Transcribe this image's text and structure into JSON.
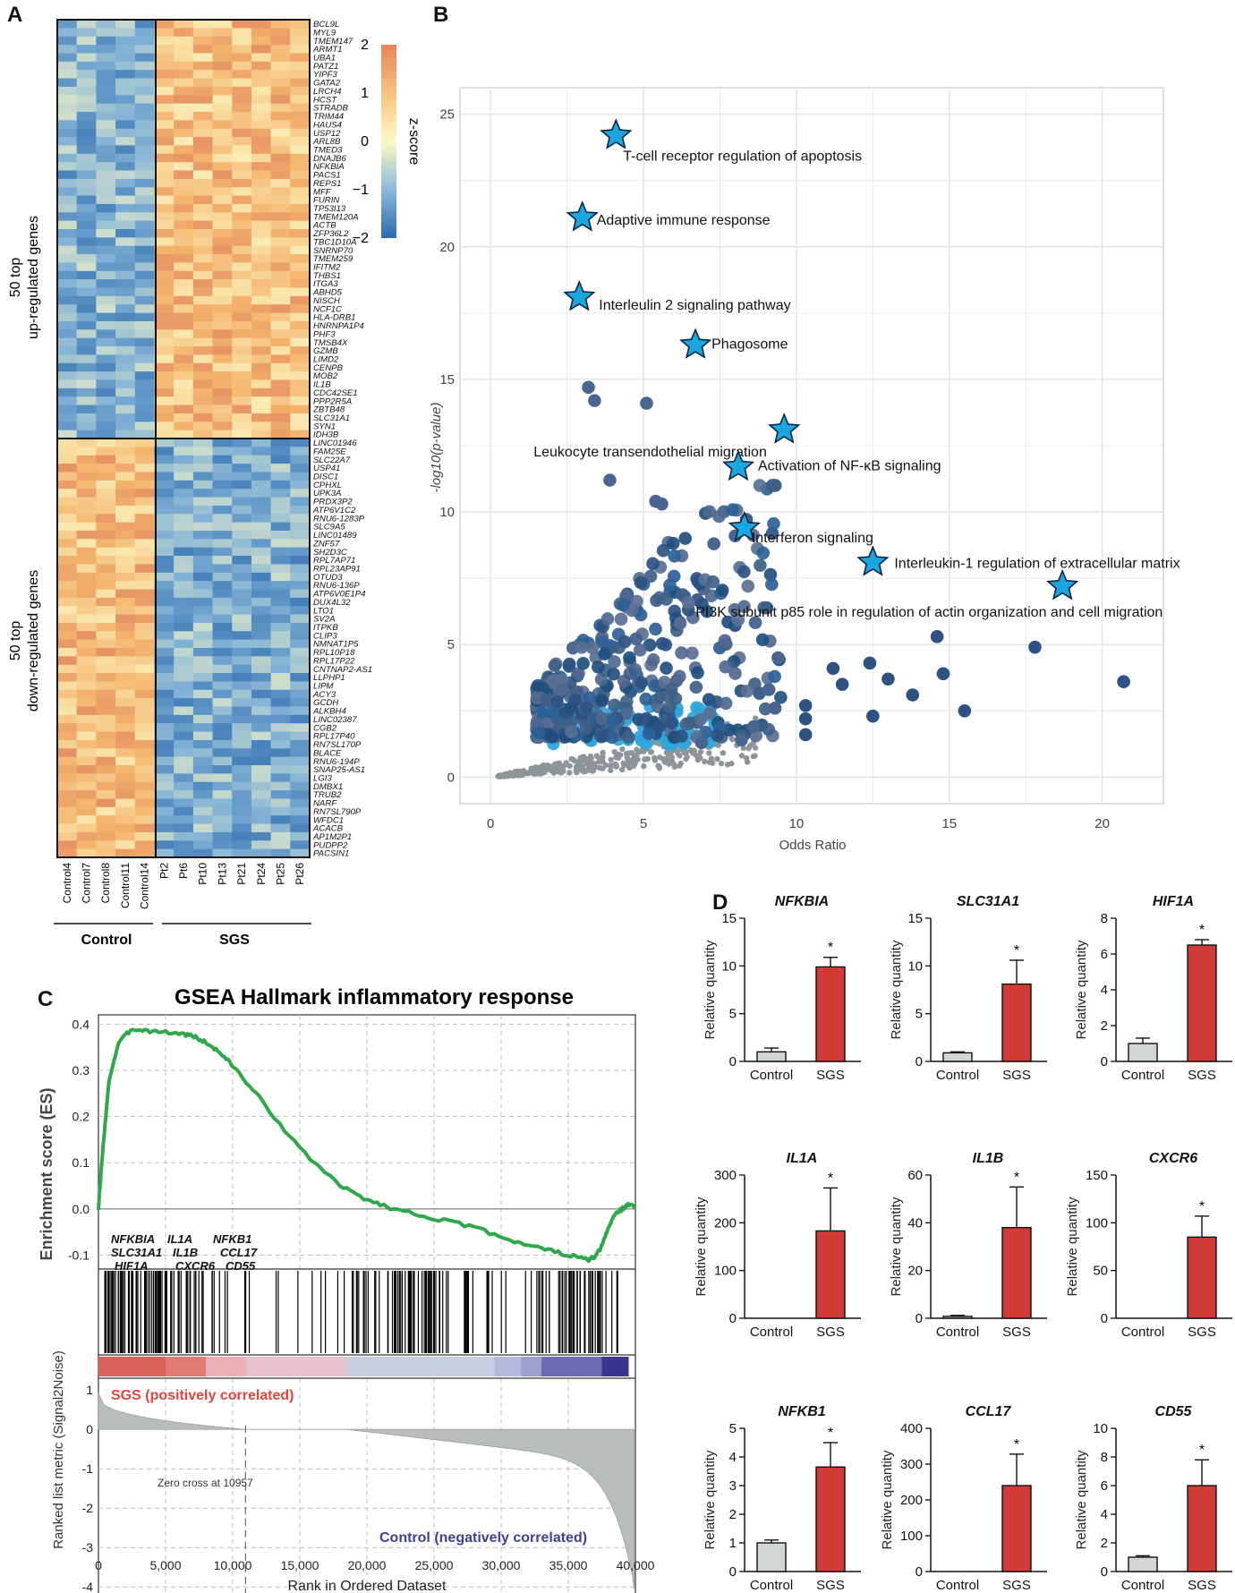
{
  "panels": {
    "a": "A",
    "b": "B",
    "c": "C",
    "d": "D"
  },
  "chart_data": [
    {
      "panel": "A",
      "type": "heatmap",
      "column_groups": [
        "Control",
        "SGS"
      ],
      "columns_control": [
        "Control4",
        "Control7",
        "Control8",
        "Control11",
        "Control14"
      ],
      "columns_sgs": [
        "Pt2",
        "Pt6",
        "Pt10",
        "Pt13",
        "Pt21",
        "Pt24",
        "Pt25",
        "Pt26"
      ],
      "row_groups": [
        "50 top\nup-regulated genes",
        "50 top\ndown-regulated genes"
      ],
      "row_group_lines": [
        [
          "50 top",
          "up-regulated genes"
        ],
        [
          "50 top",
          "down-regulated genes"
        ]
      ],
      "up_genes": [
        "BCL9L",
        "MYL9",
        "TMEM147",
        "ARMT1",
        "UBA1",
        "PATZ1",
        "YIPF3",
        "GATA2",
        "LRCH4",
        "HCST",
        "STRADB",
        "TRIM44",
        "HAUS4",
        "USP12",
        "ARL8B",
        "TMED3",
        "DNAJB6",
        "NFKBIA",
        "PACS1",
        "REPS1",
        "MFF",
        "FURIN",
        "TP53I13",
        "TMEM120A",
        "ACTB",
        "ZFP36L2",
        "TBC1D10A",
        "SNRNP70",
        "TMEM259",
        "IFITM2",
        "THBS1",
        "ITGA3",
        "ABHD5",
        "NISCH",
        "NCF1C",
        "HLA-DRB1",
        "HNRNPA1P4",
        "PHF3",
        "TMSB4X",
        "GZMB",
        "LIMD2",
        "CENPB",
        "MOB2",
        "IL1B",
        "CDC42SE1",
        "PPP2R5A",
        "ZBTB48",
        "SLC31A1",
        "SYN1",
        "IDH3B"
      ],
      "down_genes": [
        "LINC01946",
        "FAM25E",
        "SLC22A7",
        "USP41",
        "DISC1",
        "CPHXL",
        "UPK3A",
        "PRDX3P2",
        "ATP6V1C2",
        "RNU6-1283P",
        "SLC9A5",
        "LINC01489",
        "ZNF57",
        "SH2D3C",
        "RPL7AP71",
        "RPL23AP91",
        "OTUD3",
        "RNU6-136P",
        "ATP6V0E1P4",
        "DUX4L32",
        "LTO1",
        "SV2A",
        "ITPKB",
        "CLIP3",
        "NMNAT1P5",
        "RPL10P18",
        "RPL17P22",
        "CNTNAP2-AS1",
        "LLPHP1",
        "LIPM",
        "ACY3",
        "GCDH",
        "ALKBH4",
        "LINC02387",
        "CGB2",
        "RPL17P40",
        "RN7SL170P",
        "BLACE",
        "RNU6-194P",
        "SNAP25-AS1",
        "LGI3",
        "DMBX1",
        "TRUB2",
        "NARF",
        "RN7SL790P",
        "WFDC1",
        "ACACB",
        "AP1M2P1",
        "PUDPP2",
        "PACSIN1"
      ],
      "colorbar": {
        "title": "z-score",
        "ticks": [
          2,
          1,
          0,
          -1,
          -2
        ],
        "colors": [
          "#2a6aad",
          "#82b2d6",
          "#fcf9c6",
          "#f4b46c",
          "#d9745a"
        ]
      }
    },
    {
      "panel": "B",
      "type": "scatter",
      "xlabel": "Odds Ratio",
      "ylabel": "-log10(p-value)",
      "xlim": [
        -1,
        22
      ],
      "ylim": [
        -1,
        26
      ],
      "xticks": [
        0,
        5,
        10,
        15,
        20
      ],
      "yticks": [
        0,
        5,
        10,
        15,
        20,
        25
      ],
      "highlighted": [
        {
          "label": "T-cell receptor regulation of apoptosis",
          "x": 4.1,
          "y": 24.2
        },
        {
          "label": "Adaptive immune response",
          "x": 3.0,
          "y": 21.1
        },
        {
          "label": "Interleulin 2 signaling pathway",
          "x": 2.9,
          "y": 18.1
        },
        {
          "label": "Phagosome",
          "x": 6.7,
          "y": 16.3
        },
        {
          "label": "Leukocyte transendothelial migration",
          "x": 9.6,
          "y": 13.1
        },
        {
          "label": "Activation of NF-κB signaling",
          "x": 8.1,
          "y": 11.7
        },
        {
          "label": "Interferon signaling",
          "x": 8.3,
          "y": 9.4
        },
        {
          "label": "Interleukin-1 regulation of extracellular matrix",
          "x": 12.5,
          "y": 8.1
        },
        {
          "label": "PI3K subunit p85 role in regulation of actin organization and cell migration",
          "x": 18.7,
          "y": 7.2
        }
      ]
    },
    {
      "panel": "C",
      "type": "line",
      "title": "GSEA Hallmark inflammatory response",
      "ylabel": "Enrichment score (ES)",
      "ylabel2": "Ranked list metric (Signal2Noise)",
      "xlabel": "Rank in Ordered Dataset",
      "xlim": [
        0,
        40000
      ],
      "ylim": [
        -0.13,
        0.42
      ],
      "ylim2": [
        -4.2,
        1.3
      ],
      "xticks": [
        "0",
        "5,000",
        "10,000",
        "15,000",
        "20,000",
        "25,000",
        "30,000",
        "35,000",
        "40,000"
      ],
      "yticks": [
        "0.4",
        "0.3",
        "0.2",
        "0.1",
        "0.0",
        "-0.1"
      ],
      "yticks2": [
        "1",
        "0",
        "-1",
        "-2",
        "-3",
        "-4"
      ],
      "es_x": [
        0,
        300,
        800,
        1500,
        2500,
        4000,
        6000,
        7000,
        8000,
        9000,
        10000,
        12000,
        15000,
        18000,
        20000,
        22000,
        25000,
        28000,
        31000,
        33000,
        35000,
        36500,
        37000,
        37500,
        38000,
        38500,
        39000,
        39500,
        40000
      ],
      "es_y": [
        0.0,
        0.12,
        0.28,
        0.36,
        0.39,
        0.385,
        0.38,
        0.375,
        0.36,
        0.34,
        0.31,
        0.24,
        0.13,
        0.05,
        0.02,
        0.0,
        -0.02,
        -0.04,
        -0.07,
        -0.085,
        -0.1,
        -0.11,
        -0.105,
        -0.08,
        -0.04,
        -0.01,
        0.0,
        0.01,
        0.005
      ],
      "labeled_genes": [
        [
          "NFKBIA",
          "IL1A",
          "NFKB1"
        ],
        [
          "SLC31A1",
          "IL1B",
          "CCL17"
        ],
        [
          "HIF1A",
          "CXCR6",
          "CD55"
        ]
      ],
      "sgs_label": "SGS (positively correlated)",
      "control_label": "Control (negatively correlated)",
      "zero_cross_label": "Zero cross at 10957",
      "zero_cross": 10957
    },
    {
      "panel": "D",
      "type": "bar",
      "ylabel": "Relative quantity",
      "categories": [
        "Control",
        "SGS"
      ],
      "significance": "*",
      "genes": [
        {
          "name": "NFKBIA",
          "values": [
            1.0,
            9.9
          ],
          "errors": [
            0.4,
            1.0
          ],
          "ylim": [
            0,
            15
          ],
          "yticks": [
            0,
            5,
            10,
            15
          ]
        },
        {
          "name": "SLC31A1",
          "values": [
            0.9,
            8.1
          ],
          "errors": [
            0.1,
            2.5
          ],
          "ylim": [
            0,
            15
          ],
          "yticks": [
            0,
            5,
            10,
            15
          ]
        },
        {
          "name": "HIF1A",
          "values": [
            1.0,
            6.5
          ],
          "errors": [
            0.3,
            0.3
          ],
          "ylim": [
            0,
            8
          ],
          "yticks": [
            0,
            2,
            4,
            6,
            8
          ]
        },
        {
          "name": "IL1A",
          "values": [
            0,
            183
          ],
          "errors": [
            0,
            90
          ],
          "ylim": [
            0,
            300
          ],
          "yticks": [
            0,
            100,
            200,
            300
          ]
        },
        {
          "name": "IL1B",
          "values": [
            0.8,
            38
          ],
          "errors": [
            0.4,
            17
          ],
          "ylim": [
            0,
            60
          ],
          "yticks": [
            0,
            20,
            40,
            60
          ]
        },
        {
          "name": "CXCR6",
          "values": [
            0,
            85
          ],
          "errors": [
            0,
            22
          ],
          "ylim": [
            0,
            150
          ],
          "yticks": [
            0,
            50,
            100,
            150
          ]
        },
        {
          "name": "NFKB1",
          "values": [
            1.0,
            3.65
          ],
          "errors": [
            0.1,
            0.85
          ],
          "ylim": [
            0,
            5
          ],
          "yticks": [
            0,
            1,
            2,
            3,
            4,
            5
          ]
        },
        {
          "name": "CCL17",
          "values": [
            0,
            240
          ],
          "errors": [
            0,
            88
          ],
          "ylim": [
            0,
            400
          ],
          "yticks": [
            0,
            100,
            200,
            300,
            400
          ]
        },
        {
          "name": "CD55",
          "values": [
            1.0,
            6.0
          ],
          "errors": [
            0.1,
            1.8
          ],
          "ylim": [
            0,
            10
          ],
          "yticks": [
            0,
            2,
            4,
            6,
            8,
            10
          ]
        }
      ]
    }
  ],
  "colors": {
    "sgs_bar": "#d23a36",
    "control_bar": "#d3d6d6",
    "es_line": "#2ea84a",
    "star": "#1aa6de"
  }
}
